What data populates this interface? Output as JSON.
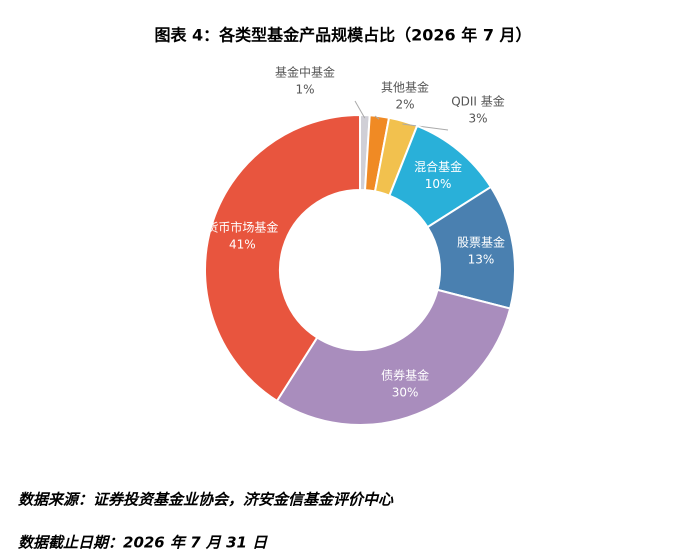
{
  "chart_data": {
    "type": "donut",
    "title": "图表 4：各类型基金产品规模占比（2026 年 7 月）",
    "categories": [
      "基金中基金",
      "其他基金",
      "QDII 基金",
      "混合基金",
      "股票基金",
      "债券基金",
      "货币市场基金"
    ],
    "values": [
      1,
      2,
      3,
      10,
      13,
      30,
      41
    ],
    "value_labels": [
      "1%",
      "2%",
      "3%",
      "10%",
      "13%",
      "30%",
      "41%"
    ],
    "colors": [
      "#d0cfd6",
      "#f08a24",
      "#f2c14e",
      "#29b0d9",
      "#4a80b0",
      "#a98dbd",
      "#e8553e"
    ],
    "source": "数据来源：证券投资基金业协会，济安金信基金评价中心",
    "date_note": "数据截止日期：2026 年 7 月 31 日"
  }
}
